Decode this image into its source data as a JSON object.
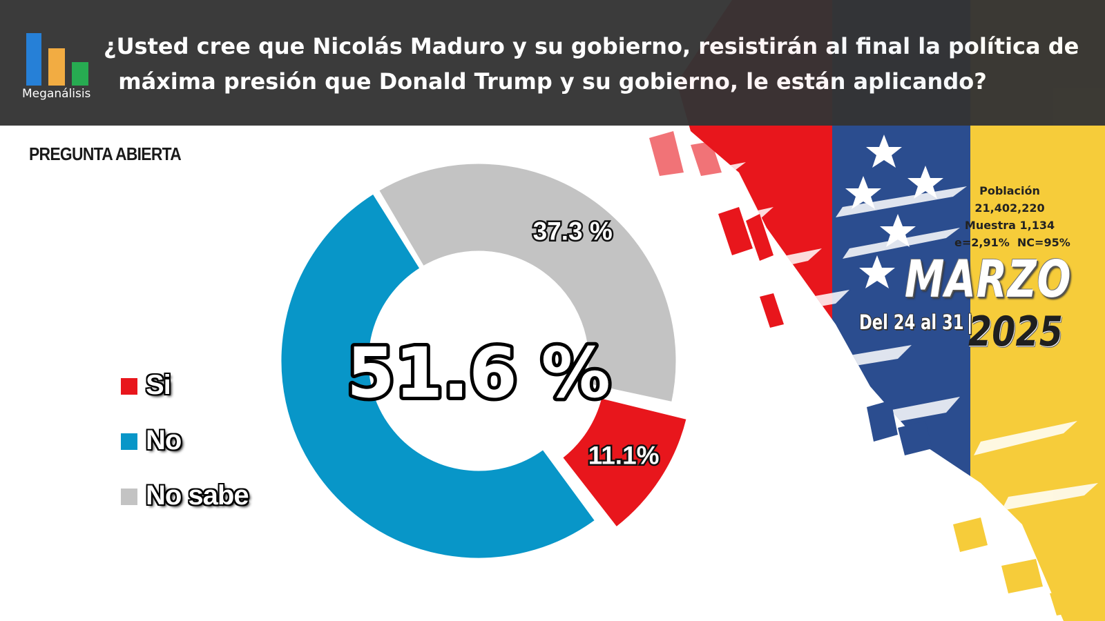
{
  "header": {
    "logo_text": "Meganálisis",
    "question_lines": [
      "¿Usted cree que Nicolás Maduro y su gobierno, resistirán al final la política de",
      "máxima presión que Donald Trump y su gobierno, le están aplicando?"
    ]
  },
  "subtitle": "PREGUNTA ABIERTA",
  "survey_info": {
    "lines": [
      "Población",
      "21,402,220",
      "Muestra 1,134",
      "e=2,91%  NC=95%"
    ],
    "month": "MARZO",
    "dates": "Del 24 al 31",
    "year": "2025"
  },
  "colors": {
    "si": "#e8161c",
    "no": "#0896c8",
    "no_sabe": "#c3c3c3",
    "header_bg": "#343434",
    "logo_blue": "#1e7bd6",
    "logo_orange": "#f2a93b",
    "logo_green": "#1fa84a",
    "flag_red": "#e8161c",
    "flag_blue": "#2b4d8f",
    "flag_yellow": "#f6cc3a"
  },
  "icons": {
    "logo": "bar-chart-logo-icon",
    "stars": "star-icon"
  },
  "chart_data": {
    "type": "pie",
    "variant": "donut",
    "categories": [
      "Si",
      "No",
      "No sabe"
    ],
    "values": [
      11.1,
      51.6,
      37.3
    ],
    "data_labels": [
      "11.1%",
      "51.6 %",
      "37.3 %"
    ],
    "exploded": "Si",
    "legend_position": "left",
    "center_label": "51.6 %"
  }
}
